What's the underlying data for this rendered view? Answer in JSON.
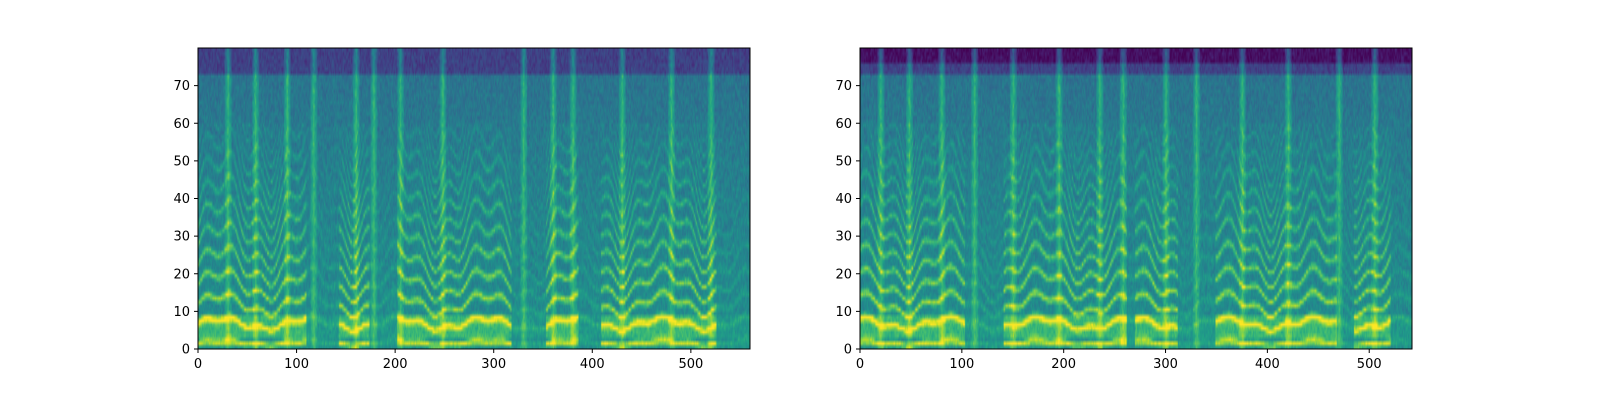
{
  "chart_data": [
    {
      "type": "heatmap",
      "title": "",
      "xlabel": "",
      "ylabel": "",
      "xlim": [
        0,
        560
      ],
      "ylim": [
        0,
        80
      ],
      "xticks": [
        0,
        100,
        200,
        300,
        400,
        500
      ],
      "yticks": [
        0,
        10,
        20,
        30,
        40,
        50,
        60,
        70
      ],
      "colormap": "viridis",
      "description_values": {
        "frames": 560,
        "bins": 80,
        "harmonic_bands_y": [
          6,
          10,
          15,
          19,
          24,
          29,
          34,
          39,
          44,
          50
        ]
      },
      "bright_columns_x": [
        30,
        58,
        90,
        117,
        160,
        178,
        205,
        248,
        330,
        360,
        380,
        430,
        480,
        520
      ],
      "seed": 11
    },
    {
      "type": "heatmap",
      "title": "",
      "xlabel": "",
      "ylabel": "",
      "xlim": [
        0,
        542
      ],
      "ylim": [
        0,
        80
      ],
      "xticks": [
        0,
        100,
        200,
        300,
        400,
        500
      ],
      "yticks": [
        0,
        10,
        20,
        30,
        40,
        50,
        60,
        70
      ],
      "colormap": "viridis",
      "description_values": {
        "frames": 542,
        "bins": 80,
        "harmonic_bands_y": [
          5,
          9,
          14,
          19,
          24,
          30,
          35,
          41,
          47,
          52
        ]
      },
      "bright_columns_x": [
        20,
        48,
        80,
        112,
        150,
        195,
        235,
        258,
        300,
        330,
        375,
        420,
        470,
        505
      ],
      "seed": 23
    }
  ]
}
